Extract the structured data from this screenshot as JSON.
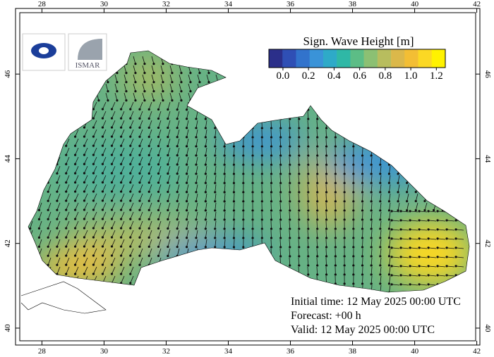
{
  "map": {
    "lon_range": [
      27.15,
      42.1
    ],
    "lat_range": [
      39.6,
      47.55
    ],
    "lon_ticks": [
      28,
      30,
      32,
      34,
      36,
      38,
      40,
      42
    ],
    "lat_ticks": [
      40,
      42,
      44,
      46
    ],
    "logo_text": "ISMAR",
    "colorbar": {
      "title": "Sign. Wave Height [m]",
      "range": [
        -0.11,
        1.27
      ],
      "colors": [
        "#2b2f8a",
        "#2f4fb5",
        "#3273cc",
        "#3a93d8",
        "#2eaac8",
        "#2fb8a6",
        "#5cbd86",
        "#8cc073",
        "#b8bd5e",
        "#dbb84a",
        "#f3be34",
        "#fbd824",
        "#fff200"
      ],
      "ticks": [
        {
          "value": 0,
          "label": "0.0"
        },
        0.2,
        0.4,
        0.6,
        0.8,
        {
          "value": 1,
          "label": "1.0"
        },
        1.2
      ]
    },
    "info": [
      "Initial time: 12 May 2025 00:00 UTC",
      "Forecast: +00 h",
      "Valid: 12 May 2025 00:00 UTC"
    ]
  }
}
